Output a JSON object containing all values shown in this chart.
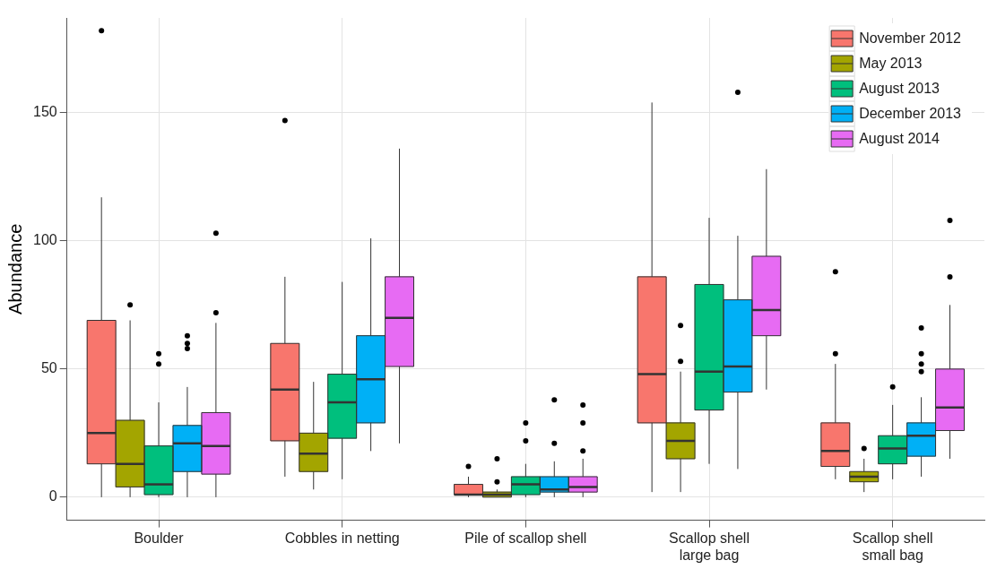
{
  "chart_data": {
    "type": "box",
    "ylabel": "Abundance",
    "categories": [
      "Boulder",
      "Cobbles in netting",
      "Pile of scallop shell",
      "Scallop shell\nlarge bag",
      "Scallop shell\nsmall bag"
    ],
    "ylim": [
      -9,
      187
    ],
    "yticks": [
      0,
      50,
      100,
      150
    ],
    "grid": true,
    "legend": "top right",
    "series": [
      {
        "name": "November 2012",
        "color": "#f8766d",
        "boxes": [
          {
            "low": 0,
            "q1": 13,
            "median": 25,
            "q3": 69,
            "high": 117,
            "outliers": [
              182
            ]
          },
          {
            "low": 8,
            "q1": 22,
            "median": 42,
            "q3": 60,
            "high": 86,
            "outliers": [
              147
            ]
          },
          {
            "low": 0,
            "q1": 1,
            "median": 1,
            "q3": 5,
            "high": 8,
            "outliers": [
              12
            ]
          },
          {
            "low": 2,
            "q1": 29,
            "median": 48,
            "q3": 86,
            "high": 154
          },
          {
            "low": 7,
            "q1": 12,
            "median": 18,
            "q3": 29,
            "high": 52,
            "outliers": [
              56,
              88
            ]
          }
        ]
      },
      {
        "name": "May 2013",
        "color": "#a3a500",
        "boxes": [
          {
            "low": 0,
            "q1": 4,
            "median": 13,
            "q3": 30,
            "high": 69,
            "outliers": [
              75
            ]
          },
          {
            "low": 3,
            "q1": 10,
            "median": 17,
            "q3": 25,
            "high": 45
          },
          {
            "low": 0,
            "q1": 0,
            "median": 1,
            "q3": 2,
            "high": 3,
            "outliers": [
              6,
              15
            ]
          },
          {
            "low": 2,
            "q1": 15,
            "median": 22,
            "q3": 29,
            "high": 49,
            "outliers": [
              53,
              67
            ]
          },
          {
            "low": 2,
            "q1": 6,
            "median": 8,
            "q3": 10,
            "high": 15,
            "outliers": [
              19
            ]
          }
        ]
      },
      {
        "name": "August 2013",
        "color": "#00bf7d",
        "boxes": [
          {
            "low": 0,
            "q1": 1,
            "median": 5,
            "q3": 20,
            "high": 37,
            "outliers": [
              52,
              56
            ]
          },
          {
            "low": 7,
            "q1": 23,
            "median": 37,
            "q3": 48,
            "high": 84
          },
          {
            "low": 0,
            "q1": 1,
            "median": 5,
            "q3": 8,
            "high": 13,
            "outliers": [
              22,
              29
            ]
          },
          {
            "low": 13,
            "q1": 34,
            "median": 49,
            "q3": 83,
            "high": 109
          },
          {
            "low": 7,
            "q1": 13,
            "median": 19,
            "q3": 24,
            "high": 36,
            "outliers": [
              43
            ]
          }
        ]
      },
      {
        "name": "December 2013",
        "color": "#00b0f6",
        "boxes": [
          {
            "low": 0,
            "q1": 10,
            "median": 21,
            "q3": 28,
            "high": 43,
            "outliers": [
              58,
              60,
              63
            ]
          },
          {
            "low": 18,
            "q1": 29,
            "median": 46,
            "q3": 63,
            "high": 101
          },
          {
            "low": 0,
            "q1": 2,
            "median": 3,
            "q3": 8,
            "high": 14,
            "outliers": [
              21,
              38
            ]
          },
          {
            "low": 11,
            "q1": 41,
            "median": 51,
            "q3": 77,
            "high": 102,
            "outliers": [
              158
            ]
          },
          {
            "low": 8,
            "q1": 16,
            "median": 24,
            "q3": 29,
            "high": 39,
            "outliers": [
              49,
              52,
              56,
              66
            ]
          }
        ]
      },
      {
        "name": "August 2014",
        "color": "#e76bf3",
        "boxes": [
          {
            "low": 0,
            "q1": 9,
            "median": 20,
            "q3": 33,
            "high": 68,
            "outliers": [
              72,
              103
            ]
          },
          {
            "low": 21,
            "q1": 51,
            "median": 70,
            "q3": 86,
            "high": 136
          },
          {
            "low": 0,
            "q1": 2,
            "median": 4,
            "q3": 8,
            "high": 15,
            "outliers": [
              18,
              29,
              36
            ]
          },
          {
            "low": 42,
            "q1": 63,
            "median": 73,
            "q3": 94,
            "high": 128
          },
          {
            "low": 15,
            "q1": 26,
            "median": 35,
            "q3": 50,
            "high": 75,
            "outliers": [
              86,
              108
            ]
          }
        ]
      }
    ]
  }
}
